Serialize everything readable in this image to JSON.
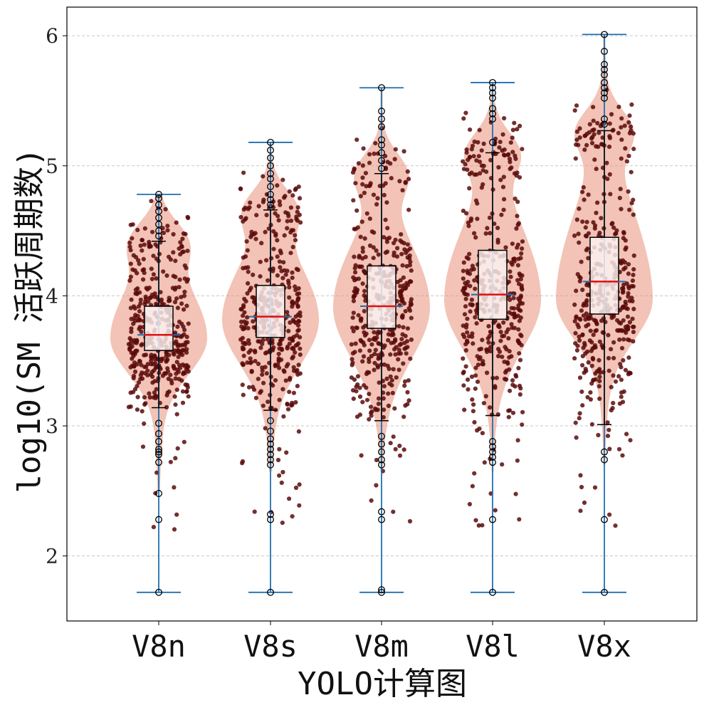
{
  "chart_data": {
    "type": "violin",
    "xlabel": "YOLO计算图",
    "ylabel": "log10(SM 活跃周期数)",
    "ylim": [
      1.5,
      6.22
    ],
    "yticks": [
      2,
      3,
      4,
      5,
      6
    ],
    "grid": "horizontal-dashed",
    "colors": {
      "violin": "#e8917a",
      "points": "#5a0a0a",
      "whisker": "#1f6fb0",
      "median": "#e01010",
      "box_fill": "#fbf3f1"
    },
    "categories": [
      "V8n",
      "V8s",
      "V8m",
      "V8l",
      "V8x"
    ],
    "groups": [
      {
        "category": "V8n",
        "min": 1.72,
        "max": 4.78,
        "q1": 3.58,
        "median": 3.7,
        "q3": 3.92,
        "mean": 3.7,
        "whisker_low": 3.14,
        "whisker_high": 4.42,
        "mode": 3.68,
        "low_density_min": 2.5,
        "outliers": [
          1.72,
          2.28,
          2.48,
          2.72,
          2.78,
          2.8,
          2.82,
          2.88,
          2.94,
          3.02,
          4.46,
          4.5,
          4.55,
          4.6,
          4.65,
          4.7,
          4.75,
          4.78
        ]
      },
      {
        "category": "V8s",
        "min": 1.72,
        "max": 5.18,
        "q1": 3.68,
        "median": 3.84,
        "q3": 4.08,
        "mean": 3.84,
        "whisker_low": 3.12,
        "whisker_high": 4.66,
        "mode": 3.82,
        "low_density_min": 2.65,
        "outliers": [
          1.72,
          2.28,
          2.32,
          2.7,
          2.74,
          2.78,
          2.82,
          2.86,
          2.9,
          2.96,
          3.04,
          4.7,
          4.74,
          4.78,
          4.84,
          4.9,
          4.94,
          5.0,
          5.06,
          5.12,
          5.18
        ]
      },
      {
        "category": "V8m",
        "min": 1.72,
        "max": 5.6,
        "q1": 3.75,
        "median": 3.92,
        "q3": 4.23,
        "mean": 3.92,
        "whisker_low": 3.04,
        "whisker_high": 4.94,
        "mode": 3.92,
        "low_density_min": 2.65,
        "outliers": [
          1.72,
          1.74,
          2.28,
          2.34,
          2.7,
          2.74,
          2.8,
          2.86,
          2.92,
          4.98,
          5.04,
          5.1,
          5.16,
          5.2,
          5.3,
          5.36,
          5.42,
          5.6
        ]
      },
      {
        "category": "V8l",
        "min": 1.72,
        "max": 5.64,
        "q1": 3.82,
        "median": 4.01,
        "q3": 4.35,
        "mean": 4.01,
        "whisker_low": 3.08,
        "whisker_high": 5.1,
        "mode": 3.98,
        "low_density_min": 2.65,
        "outliers": [
          1.72,
          2.28,
          2.72,
          2.76,
          2.8,
          2.84,
          2.88,
          5.18,
          5.36,
          5.4,
          5.44,
          5.52,
          5.56,
          5.6,
          5.64
        ]
      },
      {
        "category": "V8x",
        "min": 1.72,
        "max": 6.01,
        "q1": 3.86,
        "median": 4.11,
        "q3": 4.45,
        "mean": 4.11,
        "whisker_low": 3.01,
        "whisker_high": 5.27,
        "mode": 3.98,
        "low_density_min": 2.7,
        "outliers": [
          1.72,
          2.28,
          2.74,
          2.8,
          5.32,
          5.36,
          5.52,
          5.56,
          5.6,
          5.64,
          5.7,
          5.74,
          5.78,
          5.88,
          6.01
        ]
      }
    ]
  },
  "axes": {
    "yticks_labels": [
      "2",
      "3",
      "4",
      "5",
      "6"
    ]
  }
}
